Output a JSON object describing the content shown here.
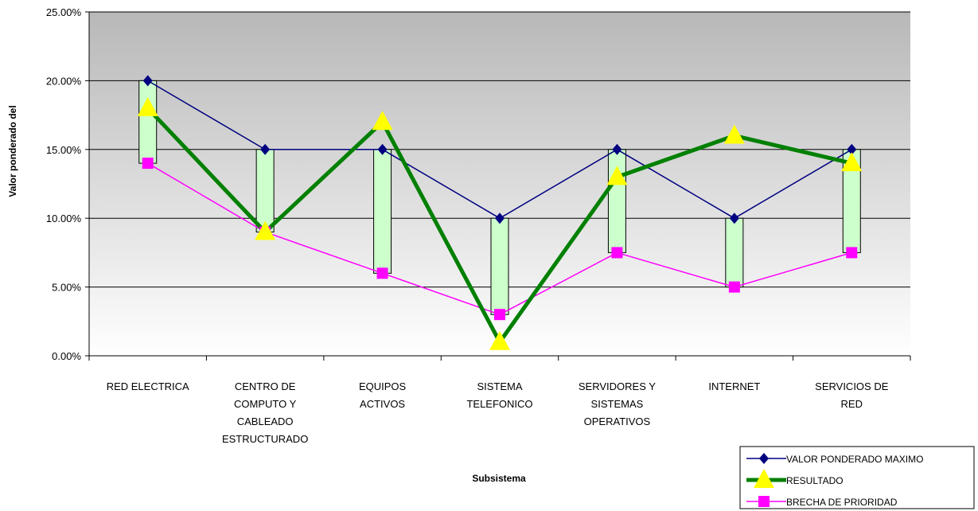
{
  "chart_data": {
    "type": "line",
    "title": "",
    "xlabel": "Subsistema",
    "ylabel": "Valor ponderado del",
    "ylim": [
      0,
      25
    ],
    "y_tick_values": [
      0,
      5,
      10,
      15,
      20,
      25
    ],
    "y_tick_labels": [
      "0.00%",
      "5.00%",
      "10.00%",
      "15.00%",
      "20.00%",
      "25.00%"
    ],
    "categories": [
      [
        "RED ELECTRICA"
      ],
      [
        "CENTRO DE",
        "COMPUTO Y",
        "CABLEADO",
        "ESTRUCTURADO"
      ],
      [
        "EQUIPOS",
        "ACTIVOS"
      ],
      [
        "SISTEMA",
        "TELEFONICO"
      ],
      [
        "SERVIDORES Y",
        "SISTEMAS",
        "OPERATIVOS"
      ],
      [
        "INTERNET"
      ],
      [
        "SERVICIOS DE",
        "RED"
      ]
    ],
    "grid": "horizontal",
    "legend_position": "bottom-right",
    "series": [
      {
        "name": "VALOR PONDERADO MAXIMO",
        "values": [
          20,
          15,
          15,
          10,
          15,
          10,
          15
        ],
        "color": "#000080",
        "marker": "diamond"
      },
      {
        "name": "RESULTADO",
        "values": [
          18,
          9,
          17,
          1,
          13,
          16,
          14
        ],
        "color": "#008000",
        "marker": "triangle",
        "marker_color": "#ffff00"
      },
      {
        "name": "BRECHA DE PRIORIDAD",
        "values": [
          14,
          9,
          6,
          3,
          7.5,
          5,
          7.5
        ],
        "color": "#ff00ff",
        "marker": "square"
      }
    ],
    "range_bars": {
      "between": [
        "BRECHA DE PRIORIDAD",
        "VALOR PONDERADO MAXIMO"
      ],
      "fill": "#ccffcc"
    }
  }
}
